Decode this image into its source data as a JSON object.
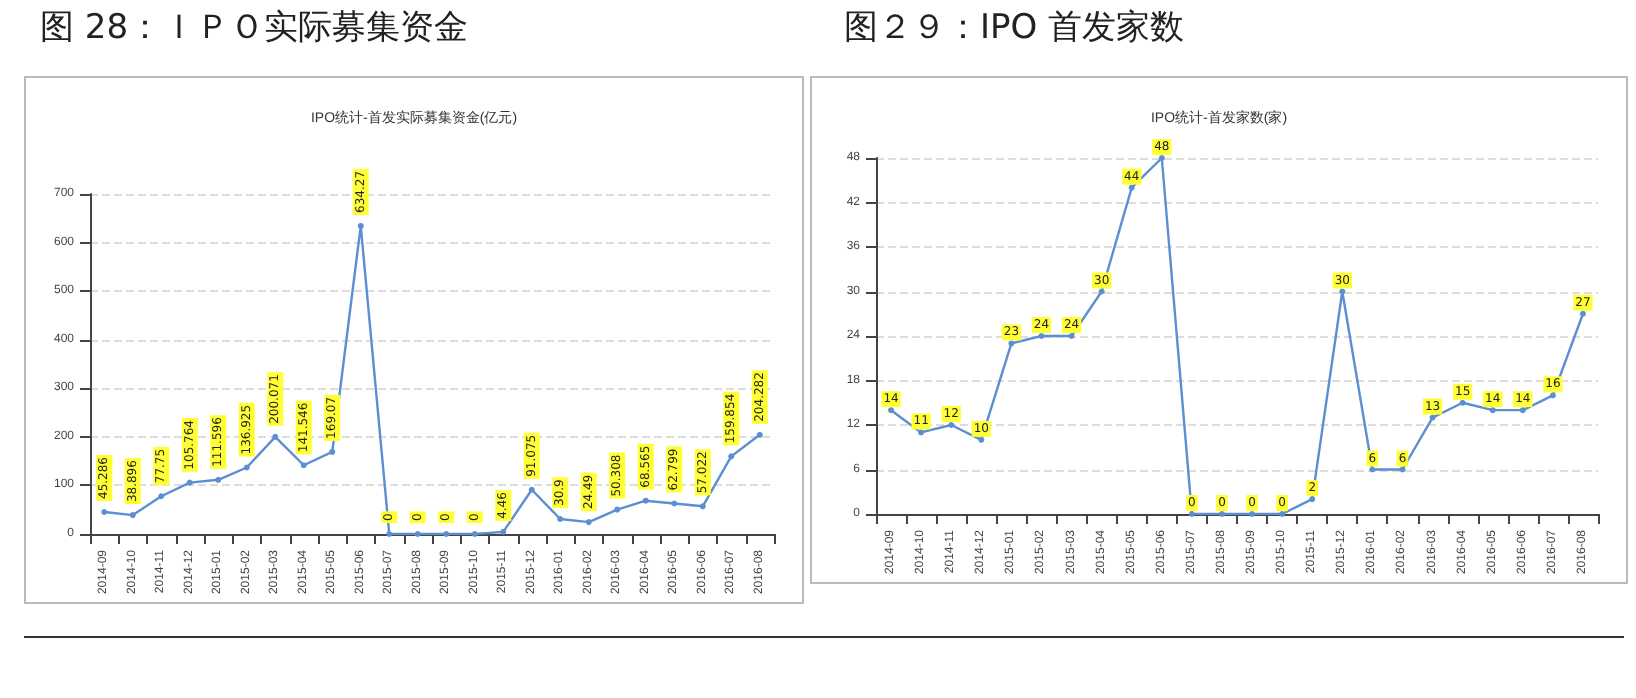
{
  "chart_data": [
    {
      "type": "line",
      "title": "图 28：ＩＰＯ实际募集资金",
      "subtitle": "IPO统计-首发实际募集资金(亿元)",
      "categories": [
        "2014-09",
        "2014-10",
        "2014-11",
        "2014-12",
        "2015-01",
        "2015-02",
        "2015-03",
        "2015-04",
        "2015-05",
        "2015-06",
        "2015-07",
        "2015-08",
        "2015-09",
        "2015-10",
        "2015-11",
        "2015-12",
        "2016-01",
        "2016-02",
        "2016-03",
        "2016-04",
        "2016-05",
        "2016-06",
        "2016-07",
        "2016-08"
      ],
      "series": [
        {
          "color": "#5b8fd1",
          "values": [
            45.286,
            38.896,
            77.75,
            105.764,
            111.596,
            136.925,
            200.071,
            141.546,
            169.07,
            634.27,
            0,
            0,
            0,
            0,
            4.46,
            91.075,
            30.9,
            24.49,
            50.308,
            68.565,
            62.799,
            57.022,
            159.854,
            204.282
          ]
        }
      ],
      "ylim": [
        0,
        700
      ],
      "yticks": [
        0,
        100,
        200,
        300,
        400,
        500,
        600,
        700
      ],
      "grid": "y",
      "marker": "circle",
      "line_style": "solid",
      "data_labels": true
    },
    {
      "type": "line",
      "title": "图２９：IPO 首发家数",
      "subtitle": "IPO统计-首发家数(家)",
      "categories": [
        "2014-09",
        "2014-10",
        "2014-11",
        "2014-12",
        "2015-01",
        "2015-02",
        "2015-03",
        "2015-04",
        "2015-05",
        "2015-06",
        "2015-07",
        "2015-08",
        "2015-09",
        "2015-10",
        "2015-11",
        "2015-12",
        "2016-01",
        "2016-02",
        "2016-03",
        "2016-04",
        "2016-05",
        "2016-06",
        "2016-07",
        "2016-08"
      ],
      "series": [
        {
          "color": "#5b8fd1",
          "values": [
            14,
            11,
            12,
            10,
            23,
            24,
            24,
            30,
            44,
            48,
            0,
            0,
            0,
            0,
            2,
            30,
            6,
            6,
            13,
            15,
            14,
            14,
            16,
            27
          ]
        }
      ],
      "ylim": [
        0,
        48
      ],
      "yticks": [
        0,
        6,
        12,
        18,
        24,
        30,
        36,
        42,
        48
      ],
      "grid": "y",
      "marker": "circle",
      "line_style": "solid",
      "data_labels": true
    }
  ]
}
